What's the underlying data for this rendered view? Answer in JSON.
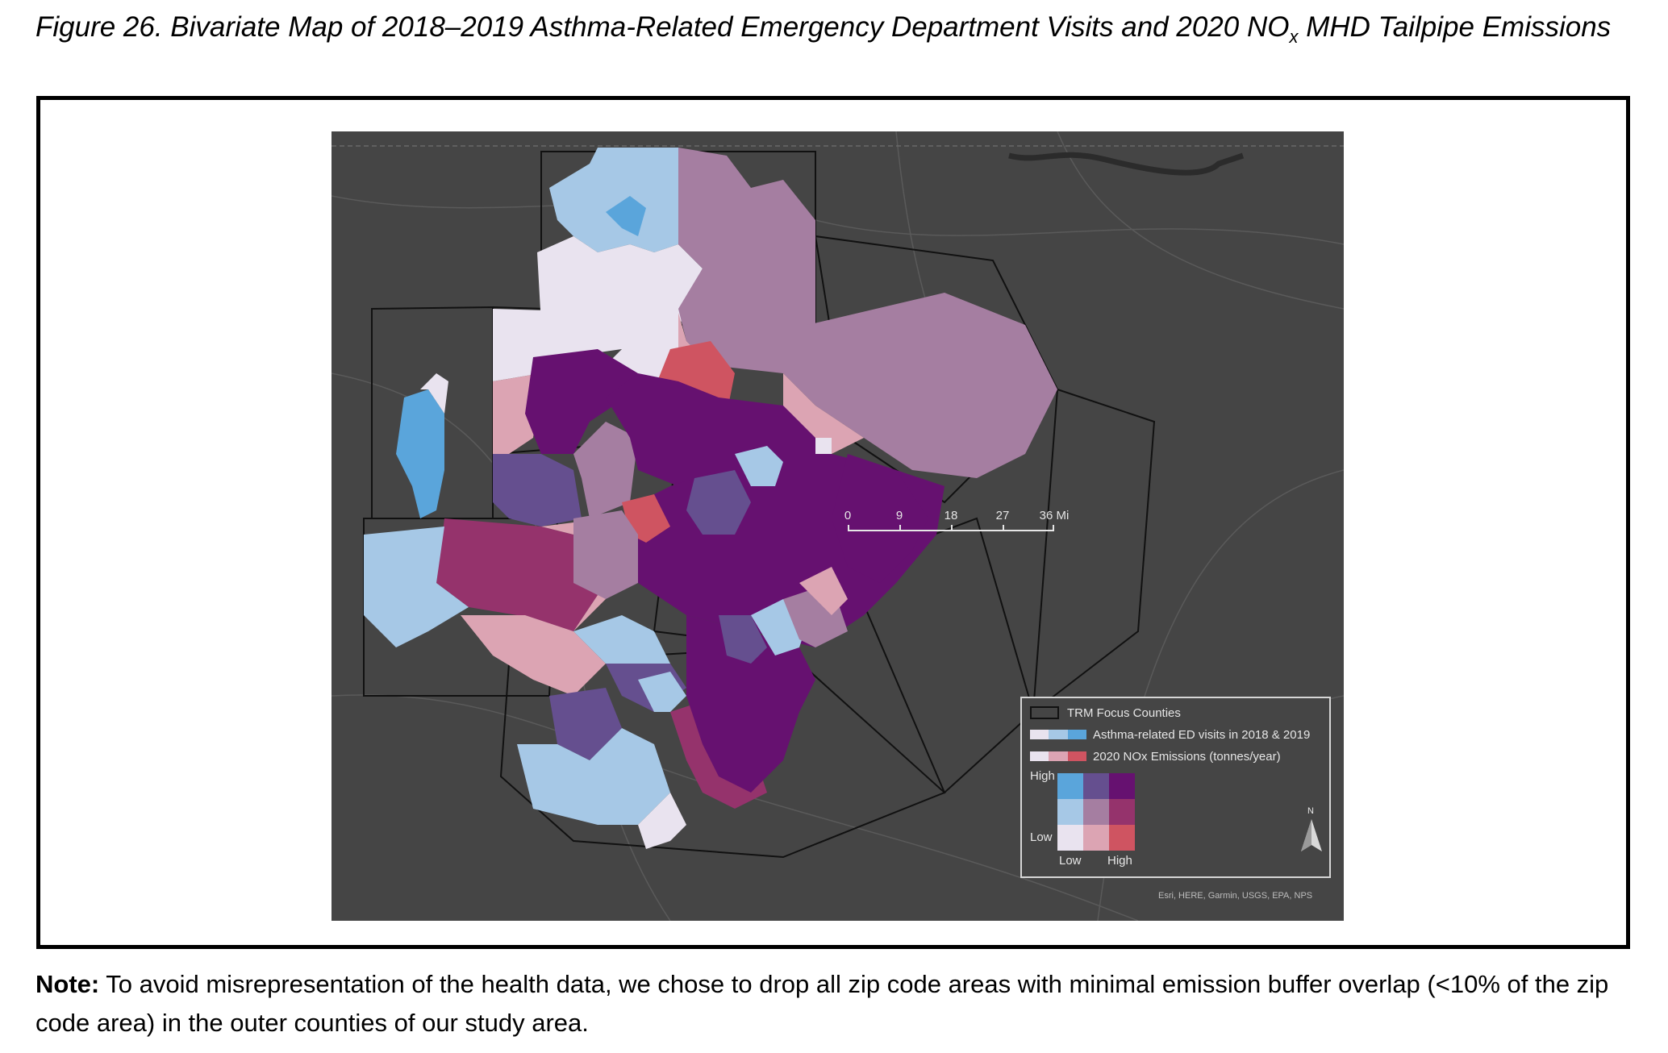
{
  "caption": {
    "text_before_sub": "Figure 26. Bivariate Map of 2018–2019 Asthma-Related Emergency Department Visits and 2020 NO",
    "subscript": "x",
    "text_after_sub": " MHD Tailpipe Emissions"
  },
  "map": {
    "attribution": "Esri, HERE, Garmin, USGS, EPA, NPS",
    "background_color": "#454545",
    "scale_bar": {
      "ticks": [
        "0",
        "9",
        "18",
        "27",
        "36 Mi"
      ]
    },
    "legend": {
      "focus_counties_label": "TRM Focus Counties",
      "asthma_label": "Asthma-related ED visits in 2018 & 2019",
      "nox_label": "2020 NOx Emissions (tonnes/year)",
      "high_label": "High",
      "low_label": "Low",
      "x_low_label": "Low",
      "x_high_label": "High",
      "asthma_ramp": [
        "#e9e3ef",
        "#a6c8e6",
        "#5aa5db"
      ],
      "nox_ramp": [
        "#e9e3ef",
        "#dca4b3",
        "#cf5461"
      ],
      "bivariate_colors": {
        "high_low": "#5aa5db",
        "high_mid": "#654f8f",
        "high_high": "#661170",
        "mid_low": "#a6c8e6",
        "mid_mid": "#a57ea1",
        "mid_high": "#95336c",
        "low_low": "#e9e3ef",
        "low_mid": "#dca4b3",
        "low_high": "#cf5461"
      },
      "north_label": "N"
    }
  },
  "note": {
    "label": "Note:",
    "text": " To avoid misrepresentation of the health data, we chose to drop all zip code areas with minimal emission buffer overlap (<10% of the zip code area) in the outer counties of our study area."
  }
}
